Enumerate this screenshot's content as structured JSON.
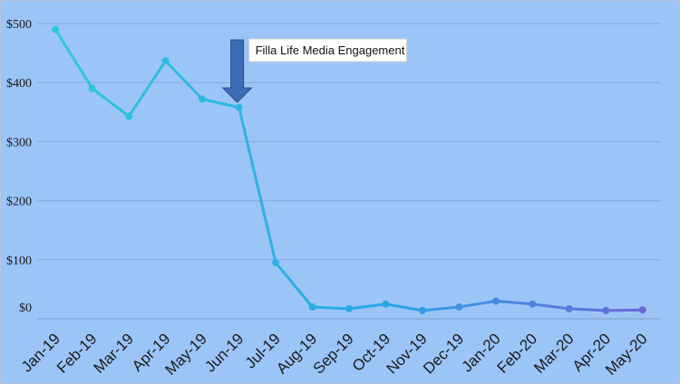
{
  "chart_data": {
    "type": "line",
    "title": "",
    "xlabel": "",
    "ylabel": "",
    "categories": [
      "Jan-19",
      "Feb-19",
      "Mar-19",
      "Apr-19",
      "May-19",
      "Jun-19",
      "Jul-19",
      "Aug-19",
      "Sep-19",
      "Oct-19",
      "Nov-19",
      "Dec-19",
      "Jan-20",
      "Feb-20",
      "Mar-20",
      "Apr-20",
      "May-20"
    ],
    "values": [
      490,
      390,
      343,
      437,
      372,
      358,
      95,
      20,
      17,
      25,
      14,
      20,
      30,
      25,
      17,
      14,
      15
    ],
    "ylim": [
      0,
      500
    ],
    "yticks": [
      0,
      100,
      200,
      300,
      400,
      500
    ],
    "ytick_labels": [
      "$0",
      "$100",
      "$200",
      "$300",
      "$400",
      "$500"
    ],
    "grid": true,
    "line_color_start": "#2ec8dc",
    "line_color_end": "#6a67d8",
    "background": "#9bc5f7",
    "annotation": {
      "text": "Filla Life Media Engagement",
      "category": "Jun-19",
      "arrow_color": "#3d6bb5"
    }
  }
}
